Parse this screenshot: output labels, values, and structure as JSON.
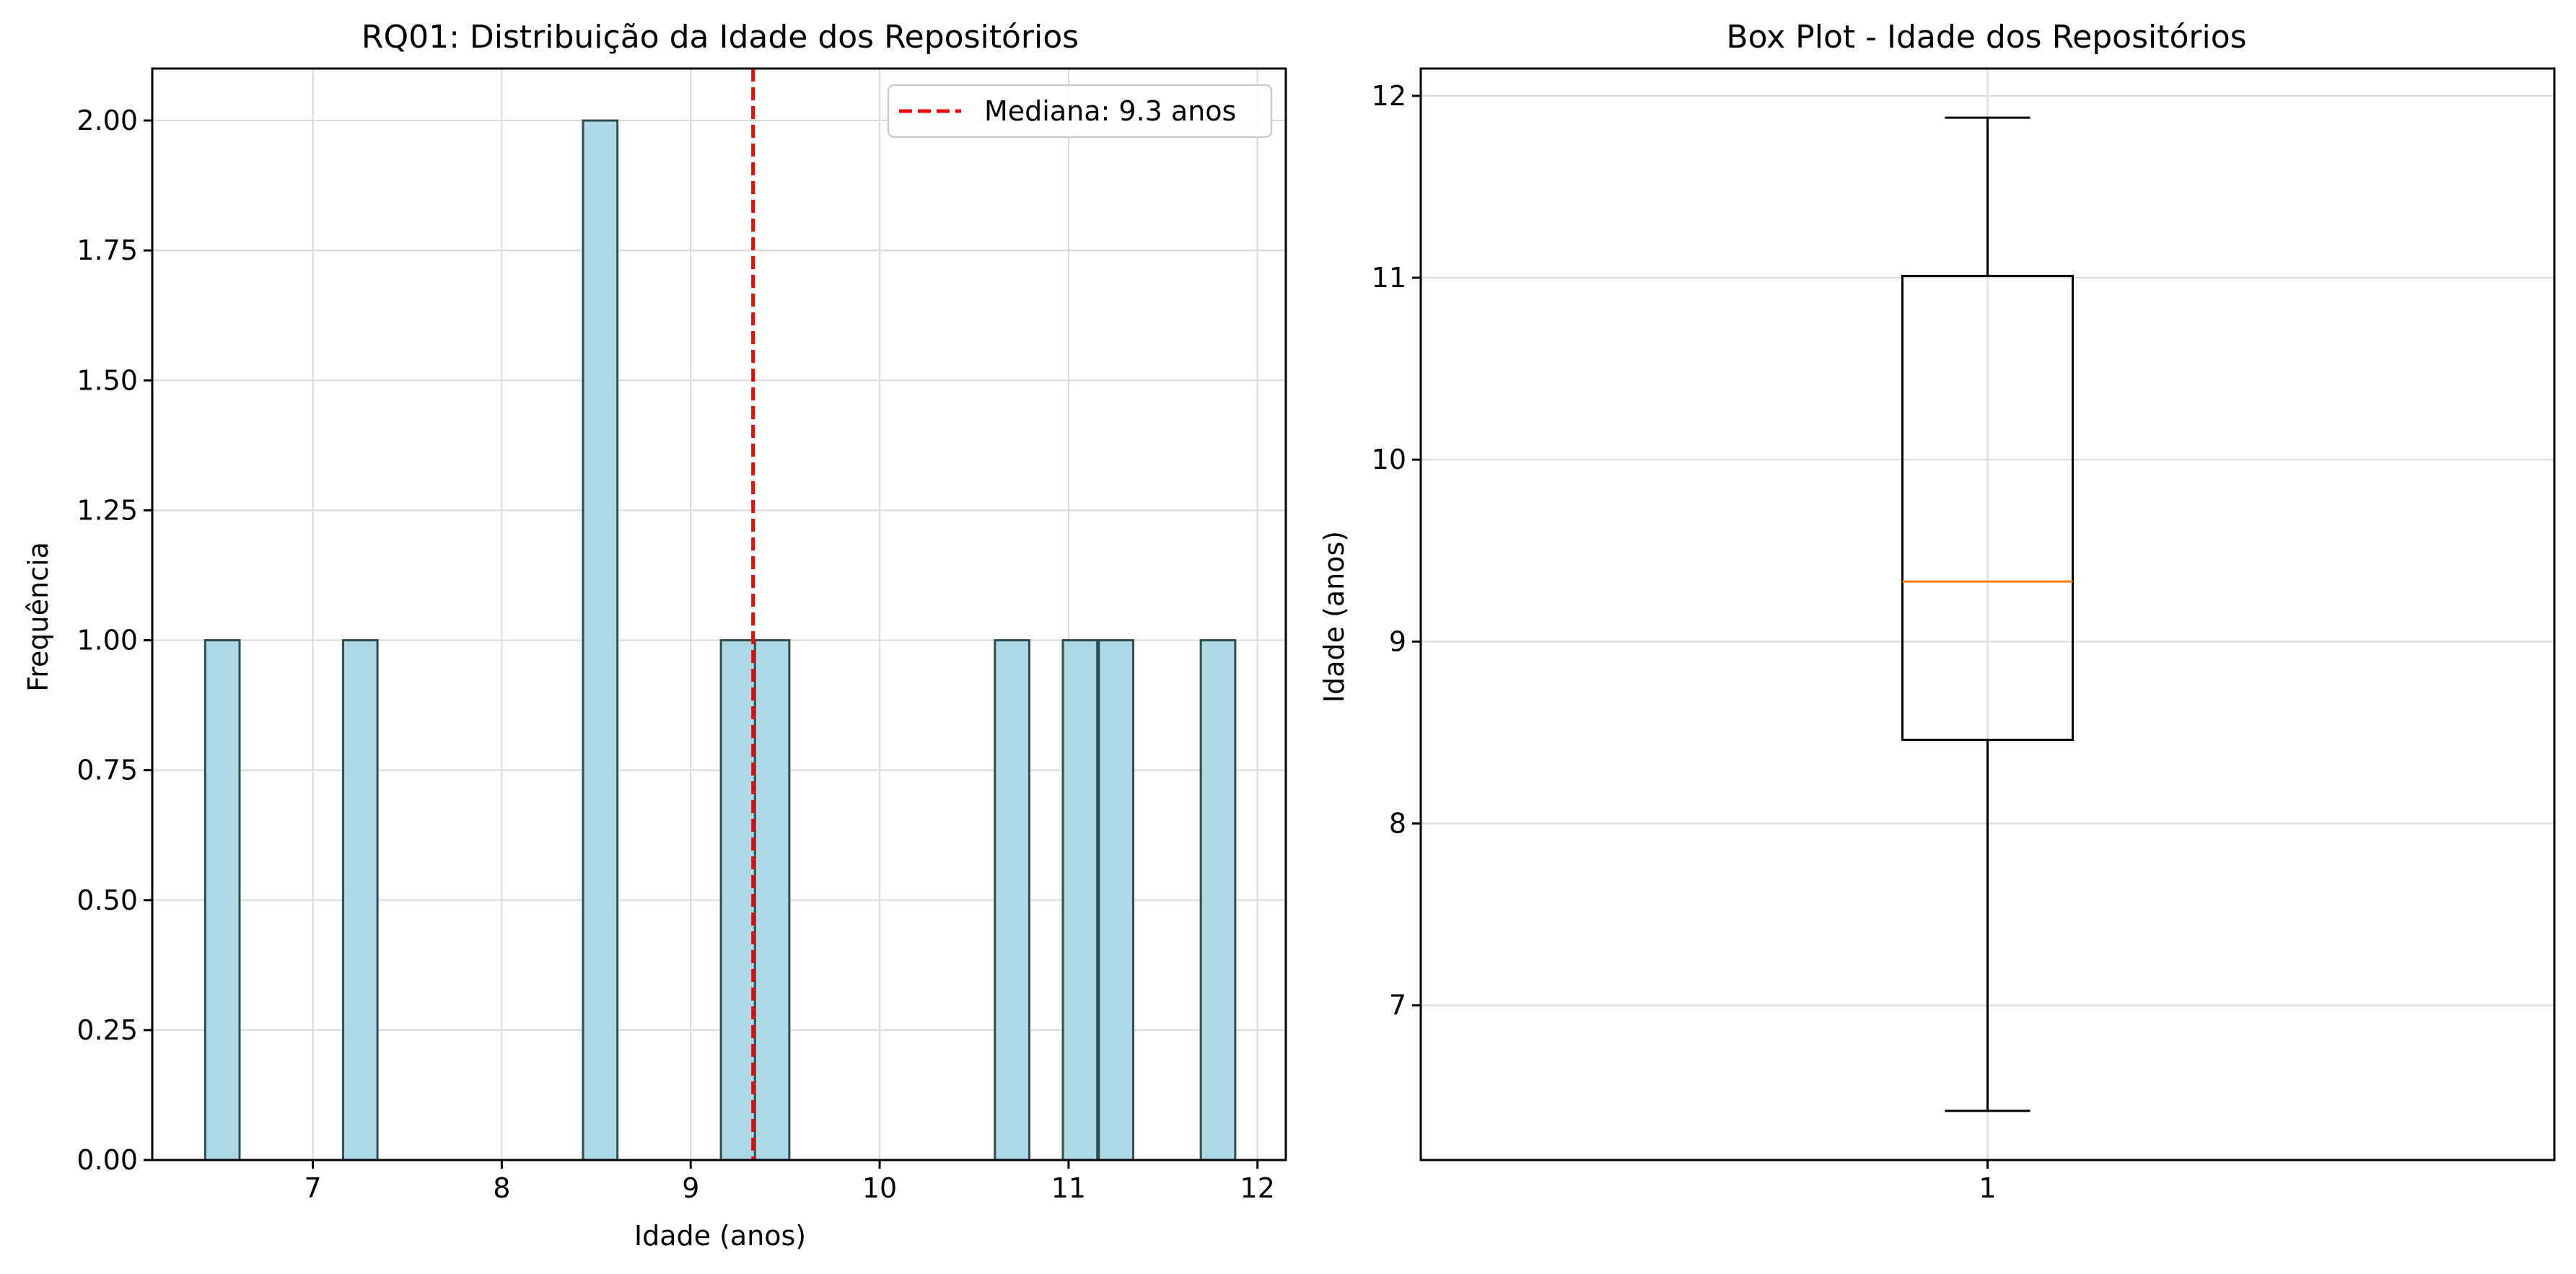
{
  "colors": {
    "hist_fill": "#add8e6",
    "hist_edge": "#2f4f4f",
    "median_line": "#ff0000",
    "box_median": "#ff7f0e",
    "grid": "#d9d9d9",
    "axes": "#000000"
  },
  "chart_data": [
    {
      "type": "bar",
      "subtype": "histogram",
      "title": "RQ01: Distribuição da Idade dos Repositórios",
      "xlabel": "Idade (anos)",
      "ylabel": "Frequência",
      "xlim": [
        6.15,
        12.15
      ],
      "ylim": [
        0,
        2.1
      ],
      "xticks": [
        7,
        8,
        9,
        10,
        11,
        12
      ],
      "xtick_labels": [
        "7",
        "8",
        "9",
        "10",
        "11",
        "12"
      ],
      "yticks": [
        0,
        0.25,
        0.5,
        0.75,
        1.0,
        1.25,
        1.5,
        1.75,
        2.0
      ],
      "ytick_labels": [
        "0.00",
        "0.25",
        "0.50",
        "0.75",
        "1.00",
        "1.25",
        "1.50",
        "1.75",
        "2.00"
      ],
      "bar_width": 0.182,
      "bars": [
        {
          "x": 6.43,
          "value": 1
        },
        {
          "x": 7.16,
          "value": 1
        },
        {
          "x": 8.43,
          "value": 2
        },
        {
          "x": 9.16,
          "value": 1
        },
        {
          "x": 9.34,
          "value": 1
        },
        {
          "x": 10.61,
          "value": 1
        },
        {
          "x": 10.97,
          "value": 1
        },
        {
          "x": 11.16,
          "value": 1
        },
        {
          "x": 11.7,
          "value": 1
        }
      ],
      "median_value": 9.33,
      "legend": {
        "placement": "top-right",
        "entries": [
          "Mediana: 9.3 anos"
        ]
      },
      "grid": true
    },
    {
      "type": "boxplot",
      "title": "Box Plot - Idade dos Repositórios",
      "xlabel": "",
      "ylabel": "Idade (anos)",
      "ylim": [
        6.15,
        12.15
      ],
      "yticks": [
        7,
        8,
        9,
        10,
        11,
        12
      ],
      "ytick_labels": [
        "7",
        "8",
        "9",
        "10",
        "11",
        "12"
      ],
      "xtick_labels": [
        "1"
      ],
      "box": {
        "whisker_low": 6.42,
        "q1": 8.46,
        "median": 9.33,
        "q3": 11.01,
        "whisker_high": 11.88
      },
      "grid": true
    }
  ]
}
